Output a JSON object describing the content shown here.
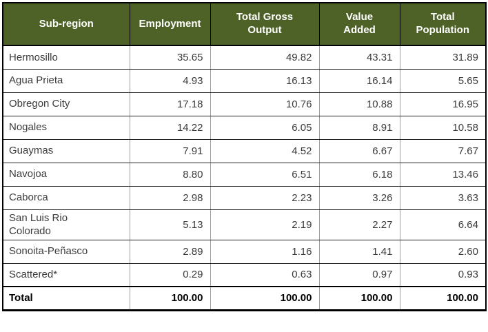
{
  "table": {
    "headers": [
      "Sub-region",
      "Employment",
      "Total Gross\nOutput",
      "Value\nAdded",
      "Total\nPopulation"
    ],
    "rows": [
      {
        "name": "Hermosillo",
        "values": [
          "35.65",
          "49.82",
          "43.31",
          "31.89"
        ]
      },
      {
        "name": "Agua Prieta",
        "values": [
          "4.93",
          "16.13",
          "16.14",
          "5.65"
        ]
      },
      {
        "name": "Obregon City",
        "values": [
          "17.18",
          "10.76",
          "10.88",
          "16.95"
        ]
      },
      {
        "name": "Nogales",
        "values": [
          "14.22",
          "6.05",
          "8.91",
          "10.58"
        ]
      },
      {
        "name": "Guaymas",
        "values": [
          "7.91",
          "4.52",
          "6.67",
          "7.67"
        ]
      },
      {
        "name": "Navojoa",
        "values": [
          "8.80",
          "6.51",
          "6.18",
          "13.46"
        ]
      },
      {
        "name": "Caborca",
        "values": [
          "2.98",
          "2.23",
          "3.26",
          "3.63"
        ]
      },
      {
        "name": "San Luis Rio\nColorado",
        "values": [
          "5.13",
          "2.19",
          "2.27",
          "6.64"
        ]
      },
      {
        "name": "Sonoita-Peñasco",
        "values": [
          "2.89",
          "1.16",
          "1.41",
          "2.60"
        ]
      },
      {
        "name": "Scattered*",
        "values": [
          "0.29",
          "0.63",
          "0.97",
          "0.93"
        ]
      }
    ],
    "total_row": {
      "name": "Total",
      "values": [
        "100.00",
        "100.00",
        "100.00",
        "100.00"
      ]
    }
  },
  "colors": {
    "header_bg": "#4E6227",
    "header_text": "#FFFFFF",
    "body_text": "#3B3B3B",
    "grid_vertical": "#9C9C9C",
    "grid_horizontal": "#1F1F1F",
    "outer_border": "#000000"
  }
}
